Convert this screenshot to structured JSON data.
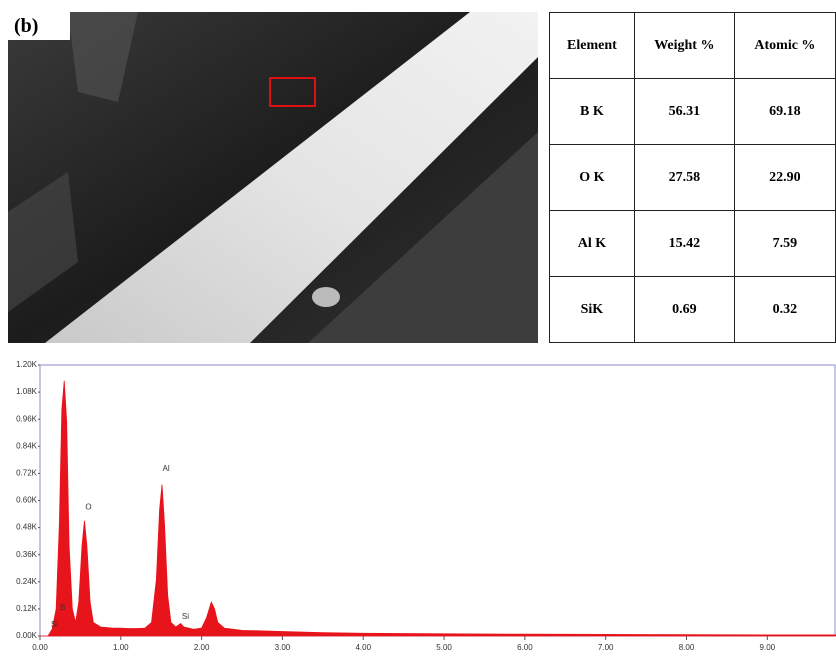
{
  "panel_label": "(b)",
  "table": {
    "header": [
      "Element",
      "Weight %",
      "Atomic %"
    ],
    "rows": [
      [
        "B K",
        "56.31",
        "69.18"
      ],
      [
        "O K",
        "27.58",
        "22.90"
      ],
      [
        "Al K",
        "15.42",
        "7.59"
      ],
      [
        "SiK",
        "0.69",
        "0.32"
      ]
    ]
  },
  "chart_data": {
    "type": "area",
    "color": "#e8141c",
    "x": [
      0,
      0.1,
      0.15,
      0.2,
      0.24,
      0.27,
      0.3,
      0.33,
      0.36,
      0.4,
      0.44,
      0.48,
      0.52,
      0.55,
      0.58,
      0.62,
      0.66,
      0.75,
      0.9,
      1.0,
      1.1,
      1.2,
      1.3,
      1.38,
      1.44,
      1.48,
      1.51,
      1.54,
      1.58,
      1.62,
      1.68,
      1.74,
      1.78,
      1.9,
      2.0,
      2.06,
      2.12,
      2.16,
      2.2,
      2.28,
      2.5,
      3.0,
      3.5,
      4.0,
      5.0,
      6.0,
      7.0,
      8.0,
      9.0,
      9.85
    ],
    "values": [
      0,
      0,
      30,
      120,
      500,
      1000,
      1130,
      950,
      400,
      120,
      60,
      150,
      400,
      510,
      400,
      150,
      60,
      40,
      35,
      35,
      33,
      33,
      35,
      60,
      250,
      560,
      670,
      500,
      180,
      60,
      40,
      55,
      40,
      30,
      35,
      80,
      150,
      120,
      60,
      35,
      25,
      20,
      15,
      12,
      10,
      8,
      7,
      6,
      5,
      5
    ],
    "xlim": [
      0,
      9.85
    ],
    "ylim": [
      0,
      1200
    ],
    "xticks": [
      {
        "value": 0,
        "label": "0.00"
      },
      {
        "value": 1,
        "label": "1.00"
      },
      {
        "value": 2,
        "label": "2.00"
      },
      {
        "value": 3,
        "label": "3.00"
      },
      {
        "value": 4,
        "label": "4.00"
      },
      {
        "value": 5,
        "label": "5.00"
      },
      {
        "value": 6,
        "label": "6.00"
      },
      {
        "value": 7,
        "label": "7.00"
      },
      {
        "value": 8,
        "label": "8.00"
      },
      {
        "value": 9,
        "label": "9.00"
      }
    ],
    "yticks": [
      {
        "value": 0,
        "label": "0.00K"
      },
      {
        "value": 120,
        "label": "0.12K"
      },
      {
        "value": 240,
        "label": "0.24K"
      },
      {
        "value": 360,
        "label": "0.36K"
      },
      {
        "value": 480,
        "label": "0.48K"
      },
      {
        "value": 600,
        "label": "0.60K"
      },
      {
        "value": 720,
        "label": "0.72K"
      },
      {
        "value": 840,
        "label": "0.84K"
      },
      {
        "value": 960,
        "label": "0.96K"
      },
      {
        "value": 1080,
        "label": "1.08K"
      },
      {
        "value": 1200,
        "label": "1.20K"
      }
    ],
    "annotations": [
      {
        "text": "Si",
        "x": 0.18,
        "y": 50
      },
      {
        "text": "B",
        "x": 0.28,
        "y": 125
      },
      {
        "text": "O",
        "x": 0.6,
        "y": 570
      },
      {
        "text": "Al",
        "x": 1.56,
        "y": 740
      },
      {
        "text": "Si",
        "x": 1.8,
        "y": 85
      }
    ]
  }
}
